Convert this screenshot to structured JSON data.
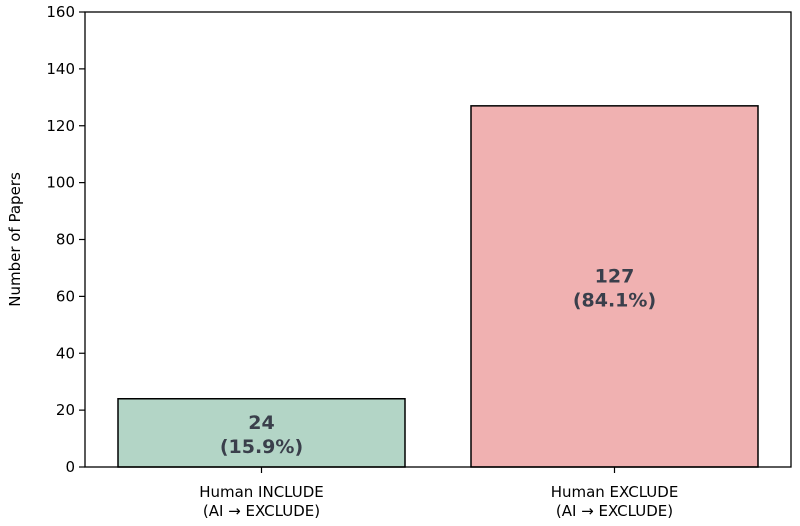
{
  "chart_data": {
    "type": "bar",
    "categories": [
      [
        "Human INCLUDE",
        "(AI → EXCLUDE)"
      ],
      [
        "Human EXCLUDE",
        "(AI → EXCLUDE)"
      ]
    ],
    "values": [
      24,
      127
    ],
    "bar_labels": [
      [
        "24",
        "(15.9%)"
      ],
      [
        "127",
        "(84.1%)"
      ]
    ],
    "colors": [
      "#b3d5c6",
      "#f0b1b1"
    ],
    "edge_color": "#000000",
    "title": "",
    "xlabel": "",
    "ylabel": "Number of Papers",
    "ylim": [
      0,
      160
    ],
    "yticks": [
      0,
      20,
      40,
      60,
      80,
      100,
      120,
      140,
      160
    ],
    "grid": false,
    "legend": "none"
  }
}
